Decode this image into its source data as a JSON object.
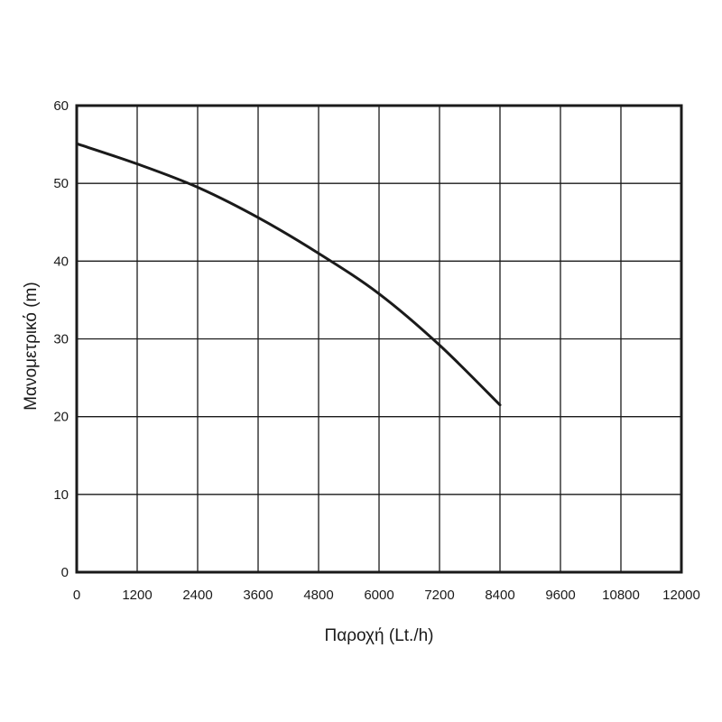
{
  "chart_data": {
    "type": "line",
    "xlabel": "Παροχή (Lt./h)",
    "ylabel": "Μανομετρικό  (m)",
    "xlim": [
      0,
      12000
    ],
    "ylim": [
      0,
      60
    ],
    "x_ticks": [
      "0",
      "1200",
      "2400",
      "3600",
      "4800",
      "6000",
      "7200",
      "8400",
      "9600",
      "10800",
      "12000"
    ],
    "y_ticks": [
      "0",
      "10",
      "20",
      "30",
      "40",
      "50",
      "60"
    ],
    "grid": true,
    "colors": {
      "line": "#1a1a1a",
      "grid": "#1a1a1a",
      "frame": "#1a1a1a",
      "background": "#ffffff"
    },
    "series": [
      {
        "x": [
          0,
          1200,
          2400,
          3600,
          4800,
          6000,
          7200,
          8400
        ],
        "y": [
          55.1,
          52.5,
          49.5,
          45.6,
          41.0,
          35.8,
          29.2,
          21.5
        ]
      }
    ]
  }
}
